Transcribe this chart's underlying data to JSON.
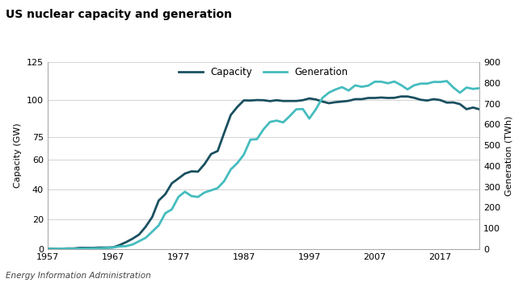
{
  "title": "US nuclear capacity and generation",
  "source": "Energy Information Administration",
  "ylabel_left": "Capacity (GW)",
  "ylabel_right": "Generation (TWh)",
  "ylim_left": [
    0,
    125
  ],
  "ylim_right": [
    0,
    900
  ],
  "yticks_left": [
    0,
    20,
    40,
    60,
    75,
    100,
    125
  ],
  "yticks_right": [
    0,
    100,
    200,
    300,
    400,
    500,
    600,
    700,
    800,
    900
  ],
  "capacity_color": "#1a5060",
  "generation_color": "#45bcbe",
  "capacity_label": "Capacity",
  "generation_label": "Generation",
  "xlim": [
    1957,
    2023
  ],
  "xticks": [
    1957,
    1967,
    1977,
    1987,
    1997,
    2007,
    2017
  ],
  "years": [
    1957,
    1958,
    1959,
    1960,
    1961,
    1962,
    1963,
    1964,
    1965,
    1966,
    1967,
    1968,
    1969,
    1970,
    1971,
    1972,
    1973,
    1974,
    1975,
    1976,
    1977,
    1978,
    1979,
    1980,
    1981,
    1982,
    1983,
    1984,
    1985,
    1986,
    1987,
    1988,
    1989,
    1990,
    1991,
    1992,
    1993,
    1994,
    1995,
    1996,
    1997,
    1998,
    1999,
    2000,
    2001,
    2002,
    2003,
    2004,
    2005,
    2006,
    2007,
    2008,
    2009,
    2010,
    2011,
    2012,
    2013,
    2014,
    2015,
    2016,
    2017,
    2018,
    2019,
    2020,
    2021,
    2022,
    2023
  ],
  "capacity_gw": [
    0.2,
    0.2,
    0.2,
    0.4,
    0.4,
    0.8,
    0.8,
    0.8,
    1.0,
    1.0,
    1.1,
    2.6,
    4.6,
    6.9,
    9.7,
    14.9,
    21.4,
    32.5,
    36.7,
    44.0,
    47.2,
    50.5,
    52.0,
    51.8,
    56.9,
    63.6,
    65.6,
    77.8,
    89.7,
    95.1,
    99.5,
    99.4,
    99.7,
    99.6,
    99.0,
    99.6,
    99.1,
    99.1,
    99.1,
    99.6,
    100.8,
    100.1,
    98.7,
    97.6,
    98.3,
    98.7,
    99.2,
    100.3,
    100.3,
    101.1,
    101.1,
    101.4,
    101.1,
    101.2,
    102.1,
    102.1,
    101.2,
    99.9,
    99.4,
    100.3,
    99.7,
    98.0,
    98.1,
    97.0,
    93.6,
    94.7,
    93.5
  ],
  "generation_twh": [
    0.3,
    1.0,
    1.5,
    2.0,
    1.8,
    2.2,
    2.9,
    3.5,
    3.7,
    5.4,
    7.5,
    12.5,
    13.9,
    21.8,
    37.9,
    54.1,
    83.5,
    113.9,
    172.5,
    191.1,
    250.9,
    276.4,
    255.2,
    251.1,
    272.7,
    282.8,
    293.7,
    327.6,
    383.7,
    414.0,
    455.3,
    527.0,
    529.4,
    576.9,
    612.6,
    618.8,
    610.3,
    640.4,
    673.4,
    674.7,
    628.6,
    673.7,
    728.3,
    753.9,
    768.8,
    780.1,
    763.7,
    788.6,
    781.9,
    787.2,
    806.4,
    806.2,
    798.9,
    807.1,
    790.2,
    769.3,
    789.0,
    797.1,
    797.2,
    805.3,
    804.9,
    809.4,
    778.2,
    753.2,
    778.2,
    771.6,
    775.3
  ],
  "bg_color": "#ffffff",
  "grid_color": "#cccccc",
  "spine_color": "#aaaaaa",
  "title_fontsize": 10,
  "axis_label_fontsize": 8,
  "tick_fontsize": 8,
  "source_fontsize": 7.5,
  "legend_fontsize": 8.5,
  "linewidth": 2.0
}
